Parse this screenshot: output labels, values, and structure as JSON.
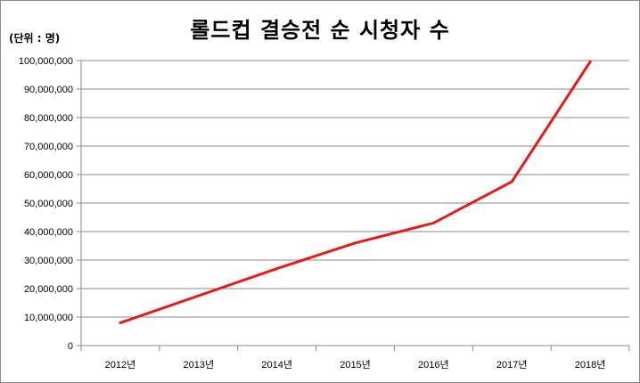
{
  "chart_data": {
    "type": "line",
    "title": "롤드컵 결승전 순 시청자 수",
    "unit_label": "(단위 : 명)",
    "categories": [
      "2012년",
      "2013년",
      "2014년",
      "2015년",
      "2016년",
      "2017년",
      "2018년"
    ],
    "series": [
      {
        "values": [
          8000000,
          17500000,
          27000000,
          36000000,
          43000000,
          57500000,
          99600000
        ],
        "color": "#e31b1b"
      }
    ],
    "ylim": [
      0,
      100000000
    ],
    "yticks": [
      0,
      10000000,
      20000000,
      30000000,
      40000000,
      50000000,
      60000000,
      70000000,
      80000000,
      90000000,
      100000000
    ],
    "ytick_labels": [
      "0",
      "10,000,000",
      "20,000,000",
      "30,000,000",
      "40,000,000",
      "50,000,000",
      "60,000,000",
      "70,000,000",
      "80,000,000",
      "90,000,000",
      "100,000,000"
    ],
    "grid": true,
    "legend": "none"
  }
}
